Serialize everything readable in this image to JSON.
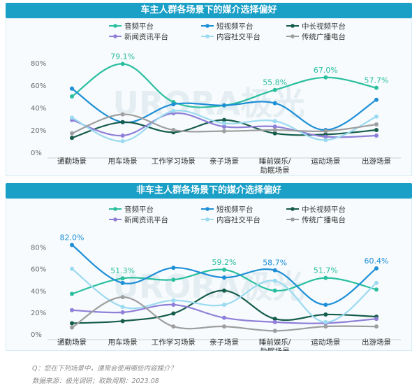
{
  "chart_data": [
    {
      "type": "line",
      "title": "车主人群各场景下的媒介选择偏好",
      "categories": [
        "通勤场景",
        "用车场景",
        "工作学习场景",
        "亲子场景",
        "睡前娱乐/\n助眠场景",
        "运动场景",
        "出游场景"
      ],
      "ylim": [
        0,
        90
      ],
      "yticks": [
        "0%",
        "20%",
        "40%",
        "60%",
        "80%"
      ],
      "ytick_values": [
        0,
        20,
        40,
        60,
        80
      ],
      "legend_position": "top",
      "watermark": "URORA极光",
      "series": [
        {
          "name": "音频平台",
          "color": "#2bbf9f",
          "values": [
            50,
            79.1,
            45,
            42,
            55.8,
            67.0,
            57.7
          ]
        },
        {
          "name": "短视频平台",
          "color": "#1e8fd6",
          "values": [
            57,
            27,
            43,
            42,
            44,
            20,
            47
          ]
        },
        {
          "name": "中长视频平台",
          "color": "#155c4b",
          "values": [
            13,
            27,
            18,
            29,
            17,
            16,
            20
          ]
        },
        {
          "name": "新闻资讯平台",
          "color": "#8f7fd8",
          "values": [
            29,
            15,
            35,
            23,
            23,
            14,
            15
          ]
        },
        {
          "name": "内容社交平台",
          "color": "#9bdaf0",
          "values": [
            31,
            10,
            37,
            26,
            28,
            11,
            32
          ]
        },
        {
          "name": "传统广播电台",
          "color": "#9e9e9e",
          "values": [
            17,
            34,
            20,
            19,
            20,
            19,
            25
          ]
        }
      ],
      "data_labels": [
        {
          "series": 0,
          "index": 1,
          "text": "79.1%"
        },
        {
          "series": 0,
          "index": 4,
          "text": "55.8%"
        },
        {
          "series": 0,
          "index": 5,
          "text": "67.0%"
        },
        {
          "series": 0,
          "index": 6,
          "text": "57.7%"
        }
      ]
    },
    {
      "type": "line",
      "title": "非车主人群各场景下的媒介选择偏好",
      "categories": [
        "通勤场景",
        "用车场景",
        "工作学习场景",
        "亲子场景",
        "睡前娱乐/\n助眠场景",
        "运动场景",
        "出游场景"
      ],
      "ylim": [
        0,
        90
      ],
      "yticks": [
        "0%",
        "20%",
        "40%",
        "60%",
        "80%"
      ],
      "ytick_values": [
        0,
        20,
        40,
        60,
        80
      ],
      "legend_position": "top",
      "watermark": "URORA极光",
      "series": [
        {
          "name": "音频平台",
          "color": "#2bbf9f",
          "values": [
            37,
            51.3,
            50,
            59.2,
            40,
            51.7,
            41
          ]
        },
        {
          "name": "短视频平台",
          "color": "#1e8fd6",
          "values": [
            82.0,
            47,
            61,
            52,
            58.7,
            27,
            60.4
          ]
        },
        {
          "name": "中长视频平台",
          "color": "#155c4b",
          "values": [
            10,
            12,
            19,
            40,
            14,
            18,
            16
          ]
        },
        {
          "name": "新闻资讯平台",
          "color": "#8f7fd8",
          "values": [
            22,
            20,
            27,
            15,
            11,
            10,
            14
          ]
        },
        {
          "name": "内容社交平台",
          "color": "#9bdaf0",
          "values": [
            60,
            25,
            31,
            27,
            49,
            11,
            47
          ]
        },
        {
          "name": "传统广播电台",
          "color": "#9e9e9e",
          "values": [
            6,
            34,
            7,
            7,
            3,
            7,
            7
          ]
        }
      ],
      "data_labels": [
        {
          "series": 1,
          "index": 0,
          "text": "82.0%"
        },
        {
          "series": 0,
          "index": 1,
          "text": "51.3%"
        },
        {
          "series": 0,
          "index": 3,
          "text": "59.2%"
        },
        {
          "series": 1,
          "index": 4,
          "text": "58.7%"
        },
        {
          "series": 0,
          "index": 5,
          "text": "51.7%"
        },
        {
          "series": 1,
          "index": 6,
          "text": "60.4%"
        }
      ]
    }
  ],
  "footnote": {
    "question": "Q：您在下列场景中，通常会使用哪些内容媒介？",
    "source": "数据来源：极光调研；取数周期：2023.08"
  }
}
